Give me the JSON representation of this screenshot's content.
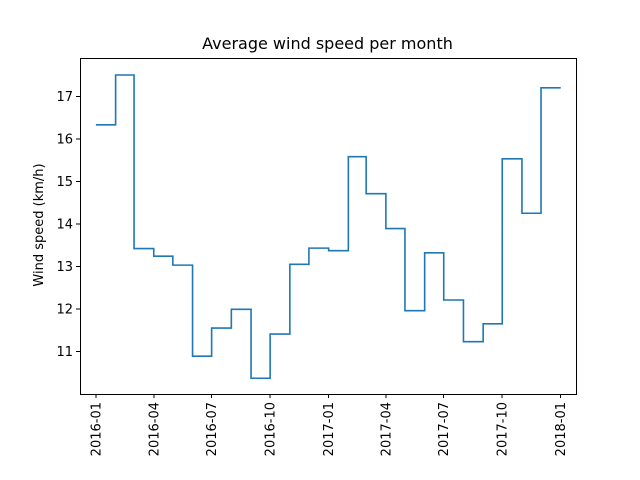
{
  "chart_data": {
    "type": "line",
    "drawstyle": "steps-post",
    "title": "Average wind speed per month",
    "xlabel": "",
    "ylabel": "Wind speed (km/h)",
    "color": "#1f77b4",
    "grid": false,
    "x_tick_labels": [
      "2016-01",
      "2016-04",
      "2016-07",
      "2016-10",
      "2017-01",
      "2017-04",
      "2017-07",
      "2017-10",
      "2018-01"
    ],
    "y_ticks": [
      11,
      12,
      13,
      14,
      15,
      16,
      17
    ],
    "xlim": [
      "2015-12-07",
      "2018-01-25"
    ],
    "ylim": [
      10.0,
      17.9
    ],
    "series": [
      {
        "x": [
          "2016-01",
          "2016-02",
          "2016-03",
          "2016-04",
          "2016-05",
          "2016-06",
          "2016-07",
          "2016-08",
          "2016-09",
          "2016-10",
          "2016-11",
          "2016-12",
          "2017-01",
          "2017-02",
          "2017-03",
          "2017-04",
          "2017-05",
          "2017-06",
          "2017-07",
          "2017-08",
          "2017-09",
          "2017-10",
          "2017-11",
          "2017-12",
          "2018-01"
        ],
        "values": [
          16.33,
          17.5,
          13.42,
          13.24,
          13.03,
          10.89,
          11.55,
          11.99,
          10.37,
          11.41,
          13.05,
          13.43,
          13.37,
          15.58,
          14.71,
          13.89,
          11.96,
          13.32,
          12.21,
          11.23,
          11.65,
          15.53,
          14.25,
          17.2,
          17.2
        ]
      }
    ]
  }
}
